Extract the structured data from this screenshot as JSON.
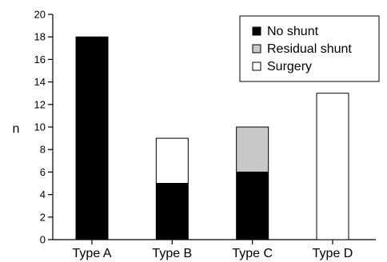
{
  "chart_data": {
    "type": "bar",
    "stacked": true,
    "categories": [
      "Type A",
      "Type B",
      "Type C",
      "Type D"
    ],
    "series": [
      {
        "name": "No shunt",
        "values": [
          18,
          5,
          6,
          0
        ],
        "color": "#000000"
      },
      {
        "name": "Surgery",
        "values": [
          0,
          4,
          0,
          13
        ],
        "color": "#ffffff"
      },
      {
        "name": "Residual shunt",
        "values": [
          0,
          0,
          4,
          0
        ],
        "color": "#c8c8c8"
      }
    ],
    "legend_order": [
      "No shunt",
      "Residual shunt",
      "Surgery"
    ],
    "legend_position": "top-right",
    "title": "",
    "xlabel": "",
    "ylabel": "n",
    "ylim": [
      0,
      20
    ],
    "yticks": [
      0,
      2,
      4,
      6,
      8,
      10,
      12,
      14,
      16,
      18,
      20
    ],
    "grid": false
  }
}
